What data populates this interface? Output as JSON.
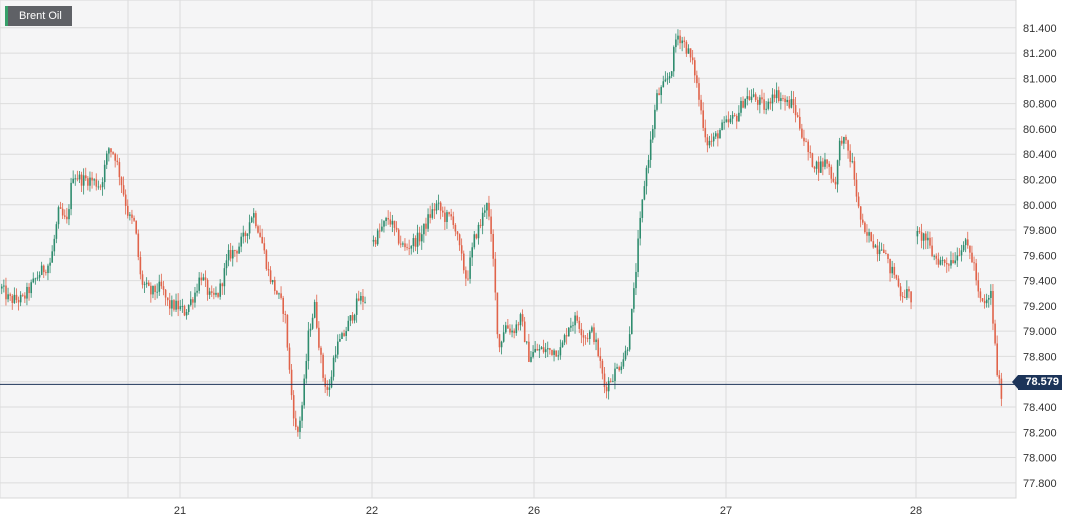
{
  "chart_data": {
    "type": "candlestick",
    "series_name": "Brent Oil",
    "x_ticks": [
      "21",
      "22",
      "26",
      "27",
      "28"
    ],
    "y_ticks": [
      "81.400",
      "81.200",
      "81.000",
      "80.800",
      "80.600",
      "80.400",
      "80.200",
      "80.000",
      "79.800",
      "79.600",
      "79.400",
      "79.200",
      "79.000",
      "78.800",
      "78.600",
      "78.400",
      "78.200",
      "78.000",
      "77.800"
    ],
    "ylim": [
      77.68,
      81.62
    ],
    "last_price": "78.579",
    "grid": true,
    "colors": {
      "up": "#2e8c6e",
      "down": "#e0634a",
      "price_line": "#1c3459",
      "grid": "#dcdcdc",
      "plot_bg": "#f5f5f6"
    },
    "path": [
      [
        0,
        79.35
      ],
      [
        8,
        79.25
      ],
      [
        22,
        79.25
      ],
      [
        38,
        79.45
      ],
      [
        50,
        79.55
      ],
      [
        58,
        79.95
      ],
      [
        66,
        79.85
      ],
      [
        72,
        80.25
      ],
      [
        80,
        80.2
      ],
      [
        90,
        80.2
      ],
      [
        100,
        80.15
      ],
      [
        108,
        80.45
      ],
      [
        114,
        80.4
      ],
      [
        120,
        80.2
      ],
      [
        128,
        79.9
      ],
      [
        134,
        79.85
      ],
      [
        140,
        79.4
      ],
      [
        150,
        79.3
      ],
      [
        160,
        79.35
      ],
      [
        168,
        79.2
      ],
      [
        176,
        79.2
      ],
      [
        184,
        79.15
      ],
      [
        194,
        79.3
      ],
      [
        200,
        79.45
      ],
      [
        210,
        79.25
      ],
      [
        218,
        79.3
      ],
      [
        228,
        79.6
      ],
      [
        236,
        79.65
      ],
      [
        244,
        79.75
      ],
      [
        252,
        79.95
      ],
      [
        260,
        79.75
      ],
      [
        268,
        79.45
      ],
      [
        276,
        79.3
      ],
      [
        284,
        79.15
      ],
      [
        290,
        78.55
      ],
      [
        296,
        78.15
      ],
      [
        302,
        78.45
      ],
      [
        308,
        79.0
      ],
      [
        314,
        79.2
      ],
      [
        322,
        78.65
      ],
      [
        328,
        78.5
      ],
      [
        334,
        78.85
      ],
      [
        342,
        78.95
      ],
      [
        350,
        79.1
      ],
      [
        358,
        79.25
      ],
      [
        366,
        79.25
      ],
      [
        372,
        79.7
      ],
      [
        380,
        79.8
      ],
      [
        388,
        79.9
      ],
      [
        396,
        79.75
      ],
      [
        404,
        79.65
      ],
      [
        412,
        79.7
      ],
      [
        420,
        79.75
      ],
      [
        428,
        79.9
      ],
      [
        436,
        80.0
      ],
      [
        444,
        79.9
      ],
      [
        452,
        79.9
      ],
      [
        460,
        79.6
      ],
      [
        466,
        79.4
      ],
      [
        474,
        79.75
      ],
      [
        480,
        79.85
      ],
      [
        486,
        80.05
      ],
      [
        492,
        79.6
      ],
      [
        498,
        78.85
      ],
      [
        504,
        79.05
      ],
      [
        512,
        79.0
      ],
      [
        520,
        79.1
      ],
      [
        528,
        78.8
      ],
      [
        536,
        78.85
      ],
      [
        544,
        78.85
      ],
      [
        552,
        78.85
      ],
      [
        560,
        78.85
      ],
      [
        568,
        79.05
      ],
      [
        576,
        79.1
      ],
      [
        584,
        78.95
      ],
      [
        592,
        79.0
      ],
      [
        598,
        78.8
      ],
      [
        604,
        78.55
      ],
      [
        612,
        78.65
      ],
      [
        620,
        78.75
      ],
      [
        626,
        78.85
      ],
      [
        632,
        79.2
      ],
      [
        638,
        79.75
      ],
      [
        644,
        80.2
      ],
      [
        650,
        80.5
      ],
      [
        656,
        80.85
      ],
      [
        664,
        80.95
      ],
      [
        670,
        81.05
      ],
      [
        676,
        81.35
      ],
      [
        682,
        81.3
      ],
      [
        688,
        81.2
      ],
      [
        694,
        81.05
      ],
      [
        700,
        80.75
      ],
      [
        706,
        80.5
      ],
      [
        712,
        80.5
      ],
      [
        720,
        80.6
      ],
      [
        728,
        80.65
      ],
      [
        736,
        80.7
      ],
      [
        744,
        80.85
      ],
      [
        752,
        80.85
      ],
      [
        760,
        80.8
      ],
      [
        766,
        80.75
      ],
      [
        772,
        80.9
      ],
      [
        780,
        80.85
      ],
      [
        786,
        80.8
      ],
      [
        792,
        80.8
      ],
      [
        798,
        80.65
      ],
      [
        804,
        80.5
      ],
      [
        810,
        80.35
      ],
      [
        818,
        80.3
      ],
      [
        826,
        80.35
      ],
      [
        834,
        80.15
      ],
      [
        840,
        80.55
      ],
      [
        846,
        80.45
      ],
      [
        852,
        80.3
      ],
      [
        858,
        79.95
      ],
      [
        864,
        79.75
      ],
      [
        870,
        79.75
      ],
      [
        876,
        79.65
      ],
      [
        882,
        79.7
      ],
      [
        888,
        79.5
      ],
      [
        894,
        79.45
      ],
      [
        900,
        79.3
      ],
      [
        906,
        79.3
      ],
      [
        912,
        79.25
      ],
      [
        916,
        79.75
      ],
      [
        924,
        79.75
      ],
      [
        932,
        79.6
      ],
      [
        940,
        79.55
      ],
      [
        948,
        79.55
      ],
      [
        956,
        79.6
      ],
      [
        962,
        79.7
      ],
      [
        968,
        79.65
      ],
      [
        974,
        79.5
      ],
      [
        978,
        79.25
      ],
      [
        984,
        79.2
      ],
      [
        990,
        79.3
      ],
      [
        996,
        78.7
      ],
      [
        1000,
        78.5
      ],
      [
        1004,
        78.58
      ]
    ]
  },
  "legend": {
    "label": "Brent Oil"
  },
  "price_tag": {
    "label": "78.579"
  }
}
